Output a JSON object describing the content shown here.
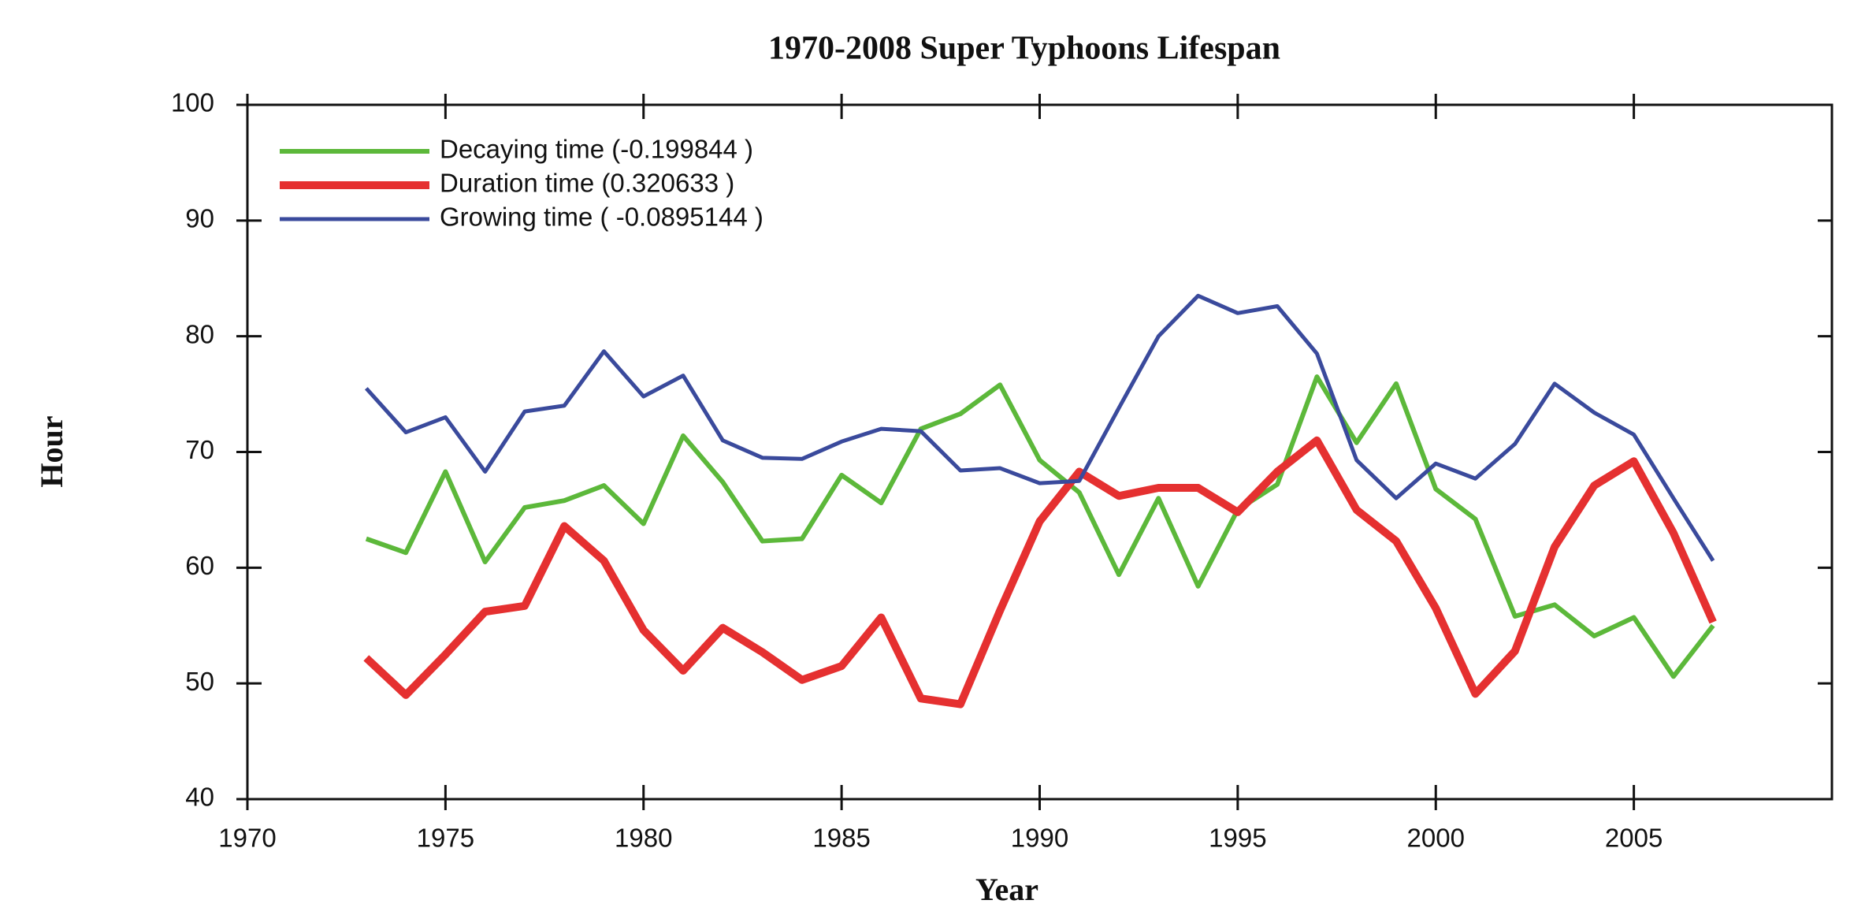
{
  "chart_data": {
    "type": "line",
    "title": "1970-2008 Super Typhoons Lifespan",
    "x_label": "Year",
    "y_label": "Hour",
    "x": [
      1973,
      1974,
      1975,
      1976,
      1977,
      1978,
      1979,
      1980,
      1981,
      1982,
      1983,
      1984,
      1985,
      1986,
      1987,
      1988,
      1989,
      1990,
      1991,
      1992,
      1993,
      1994,
      1995,
      1996,
      1997,
      1998,
      1999,
      2000,
      2001,
      2002,
      2003,
      2004,
      2005,
      2006,
      2007
    ],
    "series": [
      {
        "name": "Decaying time (-0.199844 )",
        "color": "#5cb83a",
        "values": [
          62.5,
          61.3,
          68.3,
          60.5,
          65.2,
          65.8,
          67.1,
          63.8,
          71.4,
          67.4,
          62.3,
          62.5,
          68,
          65.6,
          72,
          73.3,
          75.8,
          69.3,
          66.5,
          59.4,
          66,
          58.4,
          65,
          67.2,
          76.5,
          70.8,
          75.9,
          66.8,
          64.2,
          55.8,
          56.8,
          54.1,
          55.7,
          50.6,
          55
        ]
      },
      {
        "name": "Duration time (0.320633 )",
        "color": "#e53030",
        "values": [
          52.2,
          49,
          52.5,
          56.2,
          56.7,
          63.6,
          60.6,
          54.6,
          51.1,
          54.8,
          52.7,
          50.3,
          51.5,
          55.7,
          48.7,
          48.2,
          56.3,
          64,
          68.3,
          66.2,
          66.9,
          66.9,
          64.8,
          68.3,
          71,
          65,
          62.3,
          56.5,
          49.1,
          52.8,
          61.8,
          67.1,
          69.2,
          63,
          55.3
        ]
      },
      {
        "name": "Growing time ( -0.0895144 )",
        "color": "#3a4a9c",
        "values": [
          75.5,
          71.7,
          73,
          68.3,
          73.5,
          74,
          78.7,
          74.8,
          76.6,
          71,
          69.5,
          69.4,
          70.9,
          72,
          71.8,
          68.4,
          68.6,
          67.3,
          67.5,
          73.8,
          80,
          83.5,
          82,
          82.6,
          78.5,
          69.3,
          66,
          69,
          67.7,
          70.7,
          75.9,
          73.4,
          71.5,
          66,
          60.6
        ]
      }
    ],
    "xlim": [
      1970,
      2010
    ],
    "xticks": [
      1970,
      1975,
      1980,
      1985,
      1990,
      1995,
      2000,
      2005
    ],
    "ylim": [
      40,
      100
    ],
    "yticks": [
      40,
      50,
      60,
      70,
      80,
      90,
      100
    ],
    "legend": "upper left"
  }
}
